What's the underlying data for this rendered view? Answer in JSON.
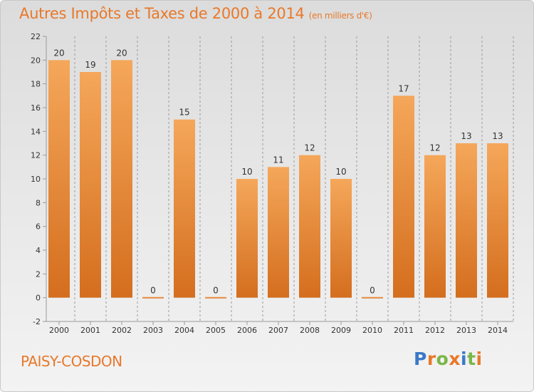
{
  "title": "Autres Impôts et Taxes de 2000 à 2014",
  "subtitle": "(en milliers d'€)",
  "commune": "PAISY-COSDON",
  "logo": {
    "text": "Proxiti",
    "letters": [
      {
        "char": "P",
        "color": "#3a78c8"
      },
      {
        "char": "r",
        "color": "#e8782a"
      },
      {
        "char": "o",
        "color": "#7ab648"
      },
      {
        "char": "x",
        "color": "#e8782a"
      },
      {
        "char": "i",
        "color": "#3a78c8"
      },
      {
        "char": "t",
        "color": "#7ab648"
      },
      {
        "char": "i",
        "color": "#e8782a"
      }
    ]
  },
  "colors": {
    "accent": "#e8782a",
    "bar_light": "#f5a75a",
    "bar_dark": "#d46e1e",
    "grid": "#9a9a9a"
  },
  "chart_data": {
    "type": "bar",
    "categories": [
      "2000",
      "2001",
      "2002",
      "2003",
      "2004",
      "2005",
      "2006",
      "2007",
      "2008",
      "2009",
      "2010",
      "2011",
      "2012",
      "2013",
      "2014"
    ],
    "values": [
      20,
      19,
      20,
      0,
      15,
      0,
      10,
      11,
      12,
      10,
      0,
      17,
      12,
      13,
      13
    ],
    "value_labels": [
      "20",
      "19",
      "20",
      "0",
      "15",
      "0",
      "10",
      "11",
      "12",
      "10",
      "0",
      "17",
      "12",
      "13",
      "13"
    ],
    "yticks": [
      -2,
      0,
      2,
      4,
      6,
      8,
      10,
      12,
      14,
      16,
      18,
      20,
      22
    ],
    "ylim": [
      -2,
      22
    ],
    "grid": true,
    "grid_style": "dashed-vertical"
  }
}
